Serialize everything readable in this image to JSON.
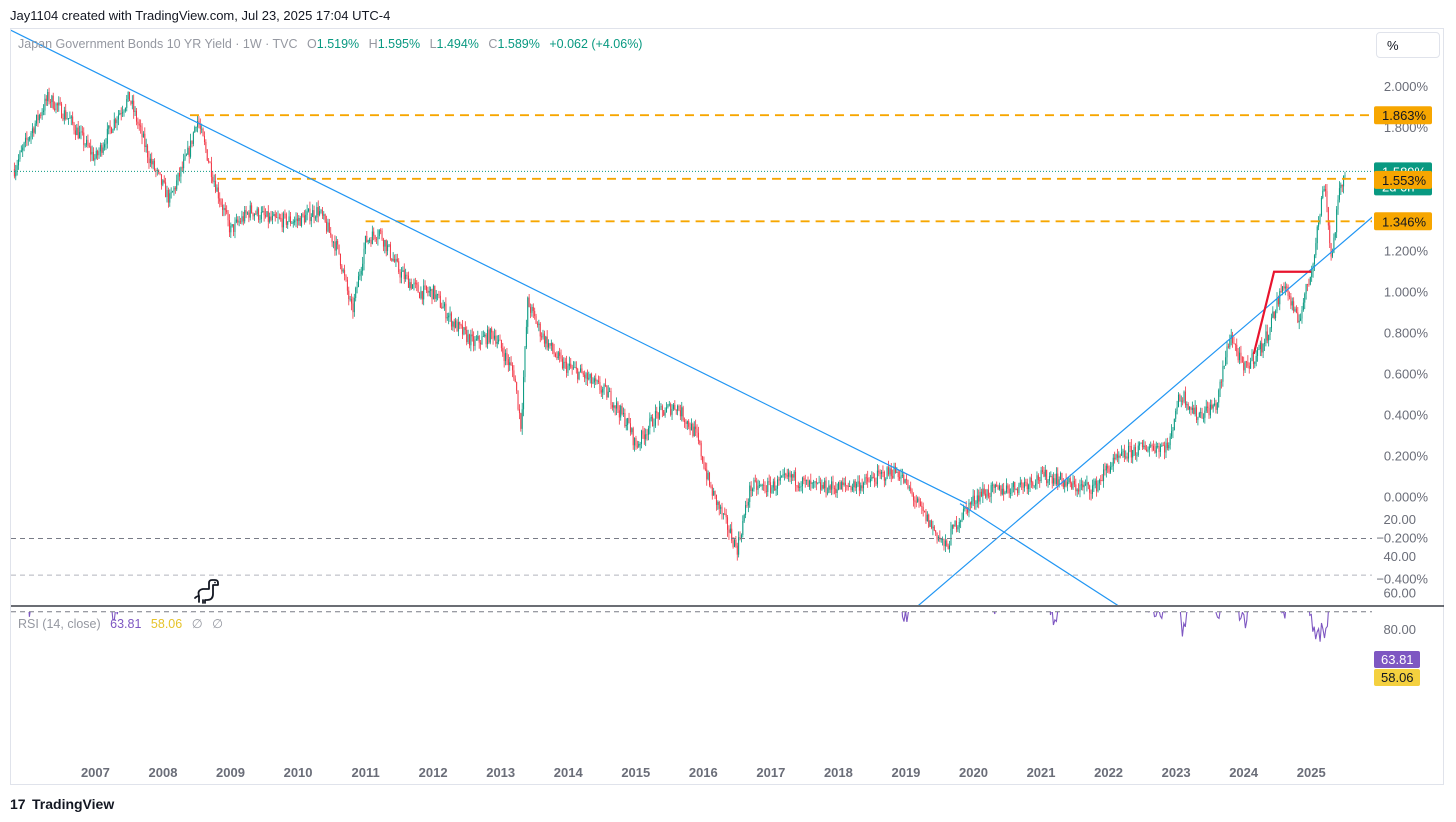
{
  "header": {
    "attribution": "Jay1104 created with TradingView.com, Jul 23, 2025 17:04 UTC-4"
  },
  "legend": {
    "symbol": "Japan Government Bonds 10 YR Yield · 1W · TVC",
    "open_label": "O",
    "open": "1.519%",
    "high_label": "H",
    "high": "1.595%",
    "low_label": "L",
    "low": "1.494%",
    "close_label": "C",
    "close": "1.589%",
    "change": "+0.062 (+4.06%)"
  },
  "scale_button": "%",
  "footer": {
    "brand": "TradingView",
    "logo": "17"
  },
  "colors": {
    "up": "#089981",
    "down": "#f23645",
    "trend": "#2196f3",
    "level": "#f7a600",
    "rsi": "#7e57c2",
    "rsi_ma": "#f4d03f",
    "red_annot": "#e8142e"
  },
  "chart_data": [
    {
      "type": "candlestick",
      "title": "Japan Government Bonds 10 YR Yield · 1W · TVC",
      "ylim": [
        -0.5,
        2.1
      ],
      "y_ticks": [
        "2.000%",
        "1.800%",
        "1.200%",
        "1.000%",
        "0.800%",
        "0.600%",
        "0.400%",
        "0.200%",
        "0.000%",
        "−0.200%",
        "−0.400%"
      ],
      "y_tick_values": [
        2.0,
        1.8,
        1.2,
        1.0,
        0.8,
        0.6,
        0.4,
        0.2,
        0.0,
        -0.2,
        -0.4
      ],
      "x_ticks": [
        "2007",
        "2008",
        "2009",
        "2010",
        "2011",
        "2012",
        "2013",
        "2014",
        "2015",
        "2016",
        "2017",
        "2018",
        "2019",
        "2020",
        "2021",
        "2022",
        "2023",
        "2024",
        "2025"
      ],
      "x_range": [
        2005.75,
        2025.9
      ],
      "series": [
        {
          "name": "JP10Y weekly (approx. path)",
          "x": [
            2005.8,
            2006.0,
            2006.3,
            2006.6,
            2007.0,
            2007.3,
            2007.5,
            2007.8,
            2008.1,
            2008.4,
            2008.5,
            2008.8,
            2009.0,
            2009.3,
            2009.6,
            2010.0,
            2010.3,
            2010.6,
            2010.8,
            2011.0,
            2011.2,
            2011.5,
            2011.8,
            2012.0,
            2012.3,
            2012.6,
            2012.9,
            2013.2,
            2013.3,
            2013.4,
            2013.6,
            2013.9,
            2014.2,
            2014.6,
            2014.9,
            2015.0,
            2015.3,
            2015.6,
            2015.9,
            2016.1,
            2016.3,
            2016.5,
            2016.7,
            2017.0,
            2017.3,
            2017.6,
            2018.0,
            2018.4,
            2018.8,
            2018.9,
            2019.2,
            2019.6,
            2019.7,
            2019.9,
            2020.1,
            2020.3,
            2020.6,
            2021.0,
            2021.2,
            2021.5,
            2021.8,
            2022.0,
            2022.3,
            2022.6,
            2022.9,
            2023.0,
            2023.1,
            2023.3,
            2023.6,
            2023.8,
            2024.0,
            2024.3,
            2024.6,
            2024.8,
            2025.0,
            2025.2,
            2025.3,
            2025.4,
            2025.5
          ],
          "y": [
            1.6,
            1.75,
            1.95,
            1.85,
            1.65,
            1.85,
            1.95,
            1.65,
            1.45,
            1.7,
            1.85,
            1.5,
            1.3,
            1.4,
            1.35,
            1.35,
            1.4,
            1.2,
            0.9,
            1.25,
            1.3,
            1.1,
            1.0,
            1.0,
            0.85,
            0.75,
            0.8,
            0.6,
            0.35,
            0.95,
            0.8,
            0.65,
            0.6,
            0.5,
            0.35,
            0.25,
            0.4,
            0.45,
            0.3,
            0.05,
            -0.1,
            -0.25,
            0.05,
            0.05,
            0.1,
            0.05,
            0.05,
            0.07,
            0.13,
            0.12,
            -0.05,
            -0.25,
            -0.15,
            -0.05,
            0.02,
            0.03,
            0.05,
            0.1,
            0.1,
            0.05,
            0.05,
            0.15,
            0.22,
            0.25,
            0.25,
            0.45,
            0.5,
            0.4,
            0.45,
            0.8,
            0.62,
            0.75,
            1.05,
            0.85,
            1.1,
            1.55,
            1.15,
            1.45,
            1.589
          ]
        }
      ],
      "levels": [
        {
          "name": "resistance-1.863",
          "value": 1.863,
          "label": "1.863%"
        },
        {
          "name": "level-1.553",
          "value": 1.553,
          "label": "1.553%"
        },
        {
          "name": "level-1.346",
          "value": 1.346,
          "label": "1.346%"
        }
      ],
      "last_price": {
        "value": 1.589,
        "label": "1.589%",
        "countdown": "2d 0h"
      },
      "trendlines": [
        {
          "name": "downtrend-upper",
          "from": [
            2005.3,
            2.35
          ],
          "to": [
            2019.9,
            -0.03
          ]
        },
        {
          "name": "downtrend-lower",
          "from": [
            2019.8,
            -0.03
          ],
          "to": [
            2022.25,
            -0.55
          ]
        },
        {
          "name": "uptrend",
          "from": [
            2019.1,
            -0.55
          ],
          "to": [
            2026.2,
            1.45
          ]
        }
      ],
      "annotations": [
        {
          "name": "red-triangle",
          "points": [
            [
              2024.15,
              0.7
            ],
            [
              2024.45,
              1.1
            ],
            [
              2025.0,
              1.1
            ]
          ]
        }
      ]
    },
    {
      "type": "line",
      "title": "RSI (14, close)",
      "rsi_value": "63.81",
      "ma_value": "58.06",
      "ylim": [
        14,
        86
      ],
      "y_ticks": [
        "80.00",
        "60.00",
        "40.00",
        "20.00"
      ],
      "y_tick_values": [
        80,
        60,
        40,
        20
      ],
      "bands": [
        70,
        50,
        30
      ],
      "x": [
        2006.0,
        2006.3,
        2006.6,
        2007.0,
        2007.3,
        2007.5,
        2007.8,
        2008.1,
        2008.4,
        2008.6,
        2008.9,
        2009.2,
        2009.5,
        2009.9,
        2010.2,
        2010.5,
        2010.8,
        2011.0,
        2011.3,
        2011.6,
        2012.0,
        2012.4,
        2012.8,
        2013.2,
        2013.4,
        2013.7,
        2014.0,
        2014.4,
        2014.8,
        2015.0,
        2015.3,
        2015.6,
        2015.9,
        2016.2,
        2016.5,
        2016.8,
        2017.1,
        2017.4,
        2017.8,
        2018.1,
        2018.5,
        2018.8,
        2019.0,
        2019.3,
        2019.6,
        2019.8,
        2020.0,
        2020.3,
        2020.7,
        2021.0,
        2021.2,
        2021.5,
        2021.8,
        2022.1,
        2022.4,
        2022.7,
        2023.0,
        2023.1,
        2023.3,
        2023.6,
        2023.8,
        2024.0,
        2024.3,
        2024.6,
        2024.9,
        2025.0,
        2025.2,
        2025.4,
        2025.5
      ],
      "series": [
        {
          "name": "RSI",
          "values": [
            68,
            50,
            45,
            52,
            70,
            45,
            35,
            42,
            72,
            45,
            36,
            48,
            32,
            45,
            55,
            40,
            25,
            58,
            42,
            32,
            40,
            52,
            35,
            65,
            22,
            68,
            42,
            45,
            30,
            18,
            58,
            38,
            50,
            18,
            25,
            38,
            66,
            52,
            45,
            58,
            48,
            62,
            72,
            35,
            22,
            20,
            45,
            65,
            55,
            52,
            78,
            45,
            55,
            62,
            52,
            70,
            60,
            84,
            45,
            70,
            52,
            75,
            48,
            70,
            40,
            78,
            82,
            50,
            63.81
          ]
        },
        {
          "name": "RSI-based MA",
          "values": [
            66,
            55,
            50,
            50,
            58,
            52,
            42,
            42,
            55,
            50,
            42,
            44,
            40,
            42,
            48,
            45,
            35,
            45,
            46,
            40,
            40,
            46,
            42,
            52,
            38,
            50,
            48,
            45,
            38,
            30,
            42,
            45,
            45,
            35,
            28,
            32,
            52,
            56,
            50,
            52,
            50,
            55,
            62,
            48,
            32,
            26,
            38,
            55,
            58,
            54,
            60,
            56,
            54,
            58,
            55,
            62,
            62,
            66,
            58,
            60,
            58,
            62,
            56,
            60,
            52,
            60,
            70,
            62,
            58.06
          ]
        }
      ]
    }
  ],
  "x_axis_labels": [
    "2007",
    "2008",
    "2009",
    "2010",
    "2011",
    "2012",
    "2013",
    "2014",
    "2015",
    "2016",
    "2017",
    "2018",
    "2019",
    "2020",
    "2021",
    "2022",
    "2023",
    "2024",
    "2025"
  ],
  "rsi_legend": {
    "title": "RSI (14, close)",
    "value": "63.81",
    "ma": "58.06",
    "extra1": "∅",
    "extra2": "∅"
  }
}
